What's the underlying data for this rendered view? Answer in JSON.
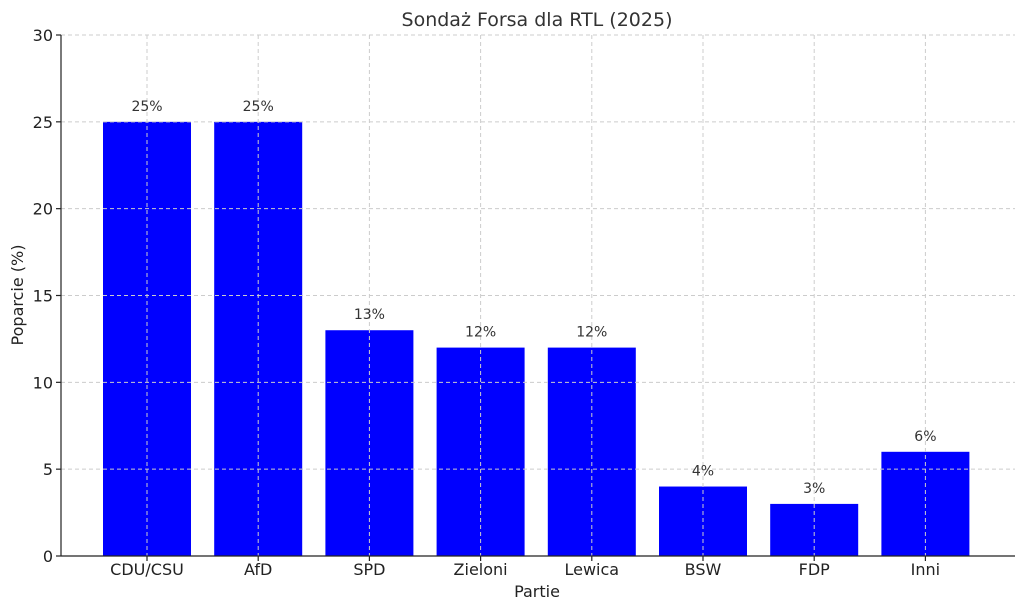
{
  "chart_data": {
    "type": "bar",
    "title": "Sondaż Forsa dla RTL (2025)",
    "xlabel": "Partie",
    "ylabel": "Poparcie (%)",
    "categories": [
      "CDU/CSU",
      "AfD",
      "SPD",
      "Zieloni",
      "Lewica",
      "BSW",
      "FDP",
      "Inni"
    ],
    "values": [
      25,
      25,
      13,
      12,
      12,
      4,
      3,
      6
    ],
    "data_labels": [
      "25%",
      "25%",
      "13%",
      "12%",
      "12%",
      "4%",
      "3%",
      "6%"
    ],
    "ylim": [
      0,
      30
    ],
    "yticks": [
      0,
      5,
      10,
      15,
      20,
      25,
      30
    ],
    "grid": true,
    "bar_color": "#0000ff"
  }
}
